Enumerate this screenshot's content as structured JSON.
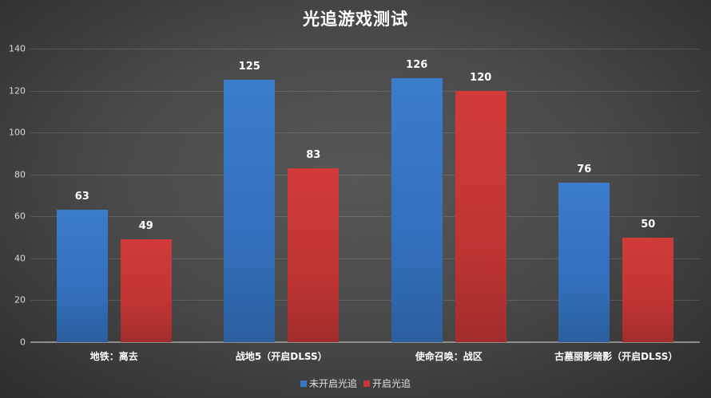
{
  "chart_data": {
    "type": "bar",
    "title": "光追游戏测试",
    "categories": [
      "地铁：离去",
      "战地5（开启DLSS）",
      "使命召唤：战区",
      "古墓丽影暗影（开启DLSS）"
    ],
    "series": [
      {
        "name": "未开启光追",
        "color": "#3777c6",
        "values": [
          63,
          125,
          126,
          76
        ]
      },
      {
        "name": "开启光追",
        "color": "#c93837",
        "values": [
          49,
          83,
          120,
          50
        ]
      }
    ],
    "xlabel": "",
    "ylabel": "",
    "ylim": [
      0,
      140
    ],
    "yticks": [
      0,
      20,
      40,
      60,
      80,
      100,
      120,
      140
    ],
    "grid": true,
    "legend_position": "bottom",
    "data_labels": true
  },
  "colors": {
    "background_center": "#575757",
    "background_edge": "#2b2b2b",
    "series0": "#3777c6",
    "series1": "#c93837"
  }
}
